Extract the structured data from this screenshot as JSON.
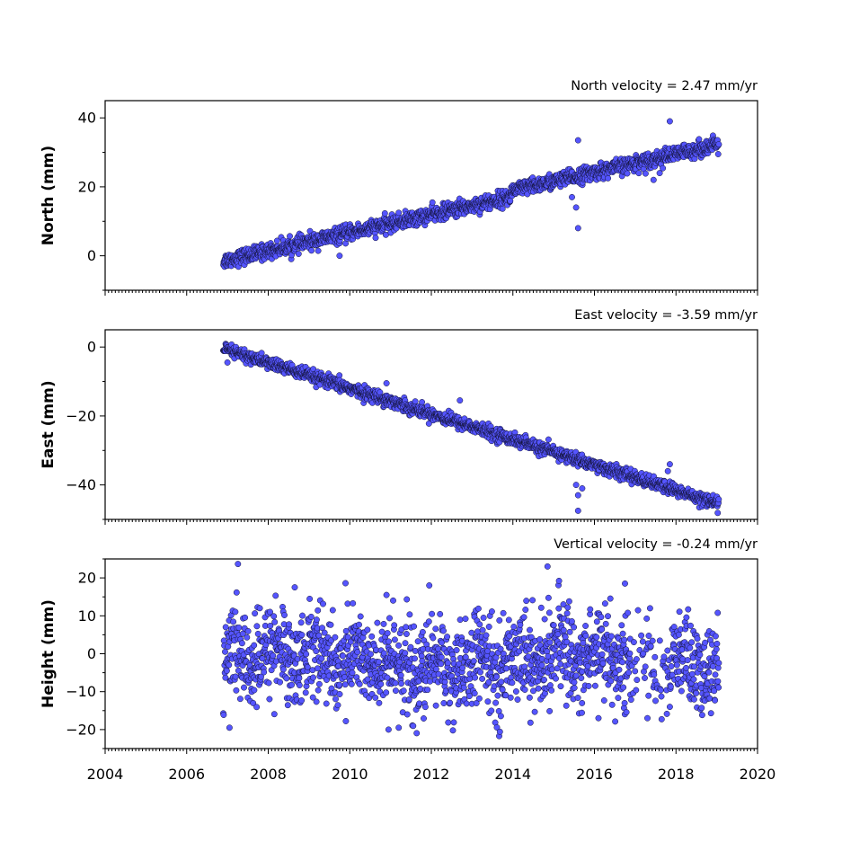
{
  "chart_data": [
    {
      "type": "scatter",
      "title": "North velocity = 2.47 mm/yr",
      "ylabel": "North (mm)",
      "xlim": [
        2004,
        2020
      ],
      "ylim": [
        -10,
        45
      ],
      "yticks": [
        0,
        20,
        40
      ],
      "point_color": "#5555ff",
      "trend": {
        "start": [
          2006.9,
          -1.5
        ],
        "end": [
          2019.05,
          30.5
        ]
      },
      "offsets": [
        {
          "at": 2013.95,
          "size": 3.5
        }
      ],
      "noise": 1.1,
      "outliers": [
        {
          "x": 2017.85,
          "y": 39
        },
        {
          "x": 2015.6,
          "y": 33.5
        },
        {
          "x": 2015.6,
          "y": 8
        },
        {
          "x": 2015.55,
          "y": 14
        },
        {
          "x": 2015.45,
          "y": 17
        },
        {
          "x": 2009.75,
          "y": 0
        },
        {
          "x": 2017.45,
          "y": 22
        },
        {
          "x": 2017.6,
          "y": 24
        }
      ]
    },
    {
      "type": "scatter",
      "title": "East velocity = -3.59 mm/yr",
      "ylabel": "East (mm)",
      "xlim": [
        2004,
        2020
      ],
      "ylim": [
        -50,
        5
      ],
      "yticks": [
        -40,
        -20,
        0
      ],
      "point_color": "#5555ff",
      "trend": {
        "start": [
          2006.9,
          -0.5
        ],
        "end": [
          2019.05,
          -45.5
        ]
      },
      "offsets": [],
      "noise": 0.9,
      "outliers": [
        {
          "x": 2015.6,
          "y": -47.5
        },
        {
          "x": 2015.6,
          "y": -43
        },
        {
          "x": 2015.55,
          "y": -40
        },
        {
          "x": 2015.7,
          "y": -41
        },
        {
          "x": 2017.85,
          "y": -34
        },
        {
          "x": 2017.8,
          "y": -36
        },
        {
          "x": 2012.7,
          "y": -15.5
        },
        {
          "x": 2010.9,
          "y": -10.5
        },
        {
          "x": 2007.0,
          "y": -4.5
        }
      ]
    },
    {
      "type": "scatter",
      "title": "Vertical velocity = -0.24 mm/yr",
      "ylabel": "Height (mm)",
      "xlim": [
        2004,
        2020
      ],
      "ylim": [
        -25,
        25
      ],
      "yticks": [
        -20,
        -10,
        0,
        10,
        20
      ],
      "point_color": "#5555ff",
      "trend": {
        "start": [
          2006.9,
          -2
        ],
        "end": [
          2019.05,
          -2
        ]
      },
      "offsets": [],
      "noise": 6,
      "outliers": [
        {
          "x": 2014.85,
          "y": 23
        },
        {
          "x": 2016.75,
          "y": 18.5
        },
        {
          "x": 2008.65,
          "y": 17.5
        },
        {
          "x": 2011.95,
          "y": 18
        },
        {
          "x": 2010.9,
          "y": 15.5
        },
        {
          "x": 2007.05,
          "y": -19.5
        },
        {
          "x": 2010.95,
          "y": -20
        },
        {
          "x": 2011.2,
          "y": -19.5
        },
        {
          "x": 2016.1,
          "y": -17
        },
        {
          "x": 2017.3,
          "y": -17
        },
        {
          "x": 2017.85,
          "y": -14
        }
      ]
    }
  ],
  "x_axis": {
    "ticks": [
      2004,
      2006,
      2008,
      2010,
      2012,
      2014,
      2016,
      2018,
      2020
    ],
    "tick_labels": [
      "2004",
      "2006",
      "2008",
      "2010",
      "2012",
      "2014",
      "2016",
      "2018",
      "2020"
    ]
  }
}
